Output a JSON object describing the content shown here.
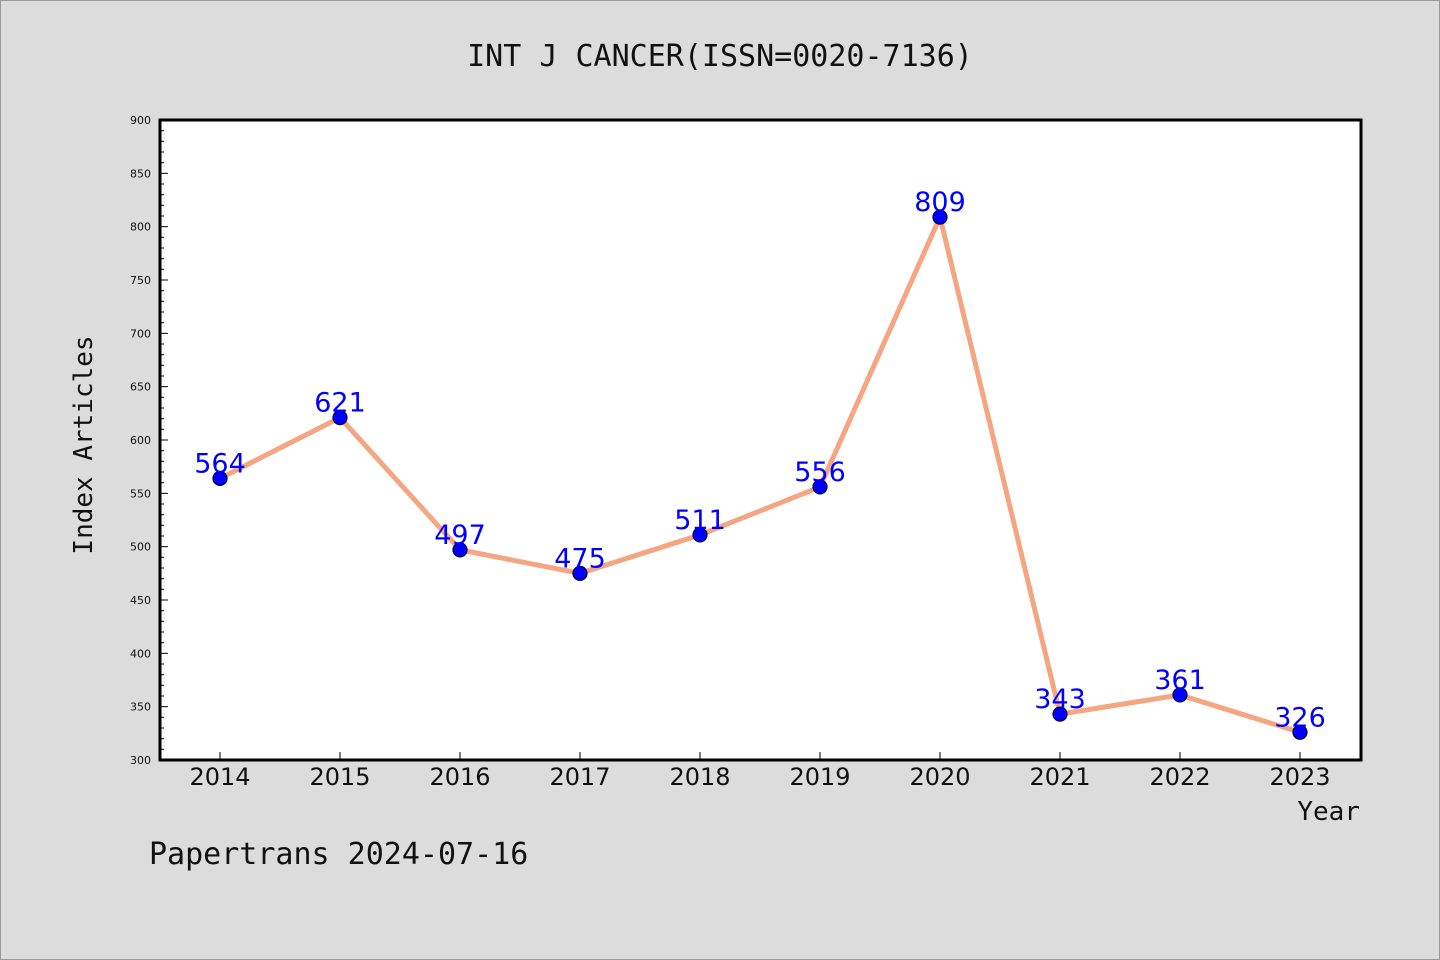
{
  "chart_data": {
    "type": "line",
    "title": "INT J CANCER(ISSN=0020-7136)",
    "xlabel": "Year",
    "ylabel": "Index Articles",
    "categories": [
      "2014",
      "2015",
      "2016",
      "2017",
      "2018",
      "2019",
      "2020",
      "2021",
      "2022",
      "2023"
    ],
    "values": [
      564,
      621,
      497,
      475,
      511,
      556,
      809,
      343,
      361,
      326
    ],
    "ylim": [
      300,
      900
    ],
    "yticks": [
      "300",
      "350",
      "400",
      "450",
      "500",
      "550",
      "600",
      "650",
      "700",
      "750",
      "800",
      "850",
      "900"
    ],
    "line_color": "#f4a582",
    "marker_color": "#0000ff",
    "label_color": "#0000ff",
    "grid": false,
    "legend": "none"
  },
  "footer": {
    "watermark": "Papertrans 2024-07-16"
  }
}
